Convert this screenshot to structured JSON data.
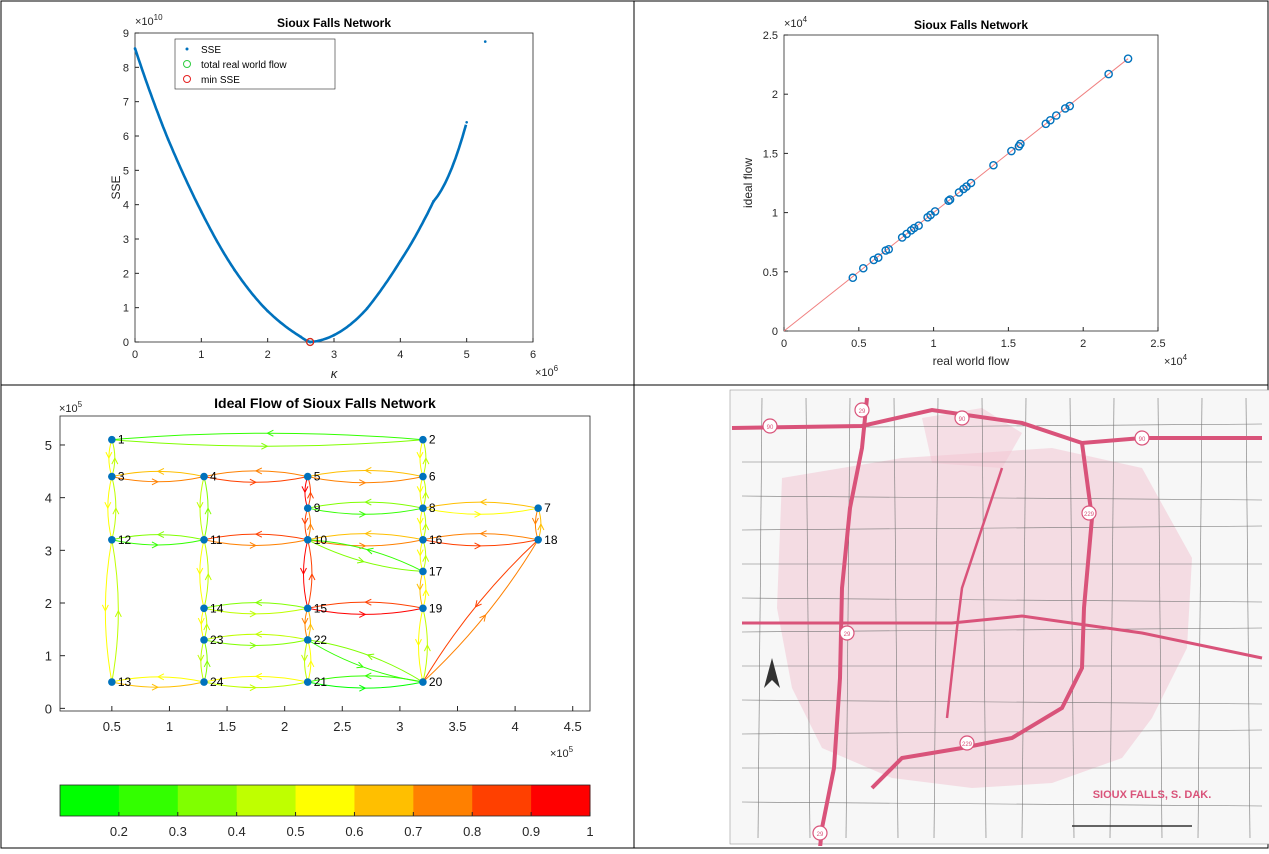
{
  "chart_data": [
    {
      "type": "line",
      "title": "Sioux Falls Network",
      "xlabel": "κ",
      "ylabel": "SSE",
      "x_exponent": "×10^6",
      "x_exponent_base": "×10",
      "x_exponent_power": "6",
      "y_exponent_base": "×10",
      "y_exponent_power": "10",
      "xlim": [
        0,
        6
      ],
      "ylim": [
        0,
        9
      ],
      "xticks": [
        0,
        1,
        2,
        3,
        4,
        5,
        6
      ],
      "yticks": [
        0,
        1,
        2,
        3,
        4,
        5,
        6,
        7,
        8,
        9
      ],
      "series": [
        {
          "name": "SSE",
          "style": "dots",
          "color": "#0072BD",
          "x": [
            0,
            0.5,
            1,
            1.5,
            2,
            2.5,
            2.64,
            3,
            3.5,
            4,
            4.5,
            5,
            5.28
          ],
          "y": [
            8.55,
            5.9,
            3.8,
            2.1,
            0.9,
            0.15,
            0,
            0.2,
            0.98,
            2.36,
            4.1,
            6.4,
            8.75
          ]
        },
        {
          "name": "total real world flow",
          "style": "circle",
          "color": "#2ECC40",
          "x": [
            2.64
          ],
          "y": [
            0
          ]
        },
        {
          "name": "min SSE",
          "style": "circle",
          "color": "#E52020",
          "x": [
            2.64
          ],
          "y": [
            0
          ]
        }
      ],
      "legend": "top-left"
    },
    {
      "type": "scatter",
      "title": "Sioux Falls Network",
      "xlabel": "real world flow",
      "ylabel": "ideal flow",
      "x_exponent_base": "×10",
      "x_exponent_power": "4",
      "y_exponent_base": "×10",
      "y_exponent_power": "4",
      "xlim": [
        0,
        2.5
      ],
      "ylim": [
        0,
        2.5
      ],
      "xticks": [
        0,
        0.5,
        1,
        1.5,
        2,
        2.5
      ],
      "yticks": [
        0,
        0.5,
        1,
        1.5,
        2,
        2.5
      ],
      "points": [
        [
          0.46,
          0.45
        ],
        [
          0.53,
          0.53
        ],
        [
          0.6,
          0.6
        ],
        [
          0.63,
          0.62
        ],
        [
          0.68,
          0.68
        ],
        [
          0.7,
          0.69
        ],
        [
          0.79,
          0.79
        ],
        [
          0.82,
          0.82
        ],
        [
          0.85,
          0.85
        ],
        [
          0.87,
          0.87
        ],
        [
          0.9,
          0.89
        ],
        [
          0.96,
          0.96
        ],
        [
          0.98,
          0.98
        ],
        [
          1.01,
          1.01
        ],
        [
          1.1,
          1.1
        ],
        [
          1.11,
          1.11
        ],
        [
          1.17,
          1.17
        ],
        [
          1.2,
          1.2
        ],
        [
          1.22,
          1.22
        ],
        [
          1.25,
          1.25
        ],
        [
          1.4,
          1.4
        ],
        [
          1.52,
          1.52
        ],
        [
          1.57,
          1.56
        ],
        [
          1.58,
          1.58
        ],
        [
          1.75,
          1.75
        ],
        [
          1.78,
          1.78
        ],
        [
          1.82,
          1.82
        ],
        [
          1.88,
          1.88
        ],
        [
          1.91,
          1.9
        ],
        [
          2.17,
          2.17
        ],
        [
          2.3,
          2.3
        ]
      ],
      "fit_line": {
        "from": [
          0,
          0
        ],
        "to": [
          2.3,
          2.3
        ],
        "color": "#F08080"
      }
    },
    {
      "type": "network",
      "title": "Ideal Flow of Sioux Falls Network",
      "x_exponent_base": "×10",
      "x_exponent_power": "5",
      "y_exponent_base": "×10",
      "y_exponent_power": "5",
      "xlim": [
        0.05,
        4.65
      ],
      "ylim": [
        -0.05,
        5.55
      ],
      "xticks": [
        0.5,
        1,
        1.5,
        2,
        2.5,
        3,
        3.5,
        4,
        4.5
      ],
      "yticks": [
        0,
        1,
        2,
        3,
        4,
        5
      ],
      "nodes": [
        {
          "id": "1",
          "x": 0.5,
          "y": 5.1
        },
        {
          "id": "2",
          "x": 3.2,
          "y": 5.1
        },
        {
          "id": "3",
          "x": 0.5,
          "y": 4.4
        },
        {
          "id": "4",
          "x": 1.3,
          "y": 4.4
        },
        {
          "id": "5",
          "x": 2.2,
          "y": 4.4
        },
        {
          "id": "6",
          "x": 3.2,
          "y": 4.4
        },
        {
          "id": "7",
          "x": 4.2,
          "y": 3.8
        },
        {
          "id": "8",
          "x": 3.2,
          "y": 3.8
        },
        {
          "id": "9",
          "x": 2.2,
          "y": 3.8
        },
        {
          "id": "10",
          "x": 2.2,
          "y": 3.2
        },
        {
          "id": "11",
          "x": 1.3,
          "y": 3.2
        },
        {
          "id": "12",
          "x": 0.5,
          "y": 3.2
        },
        {
          "id": "13",
          "x": 0.5,
          "y": 0.5
        },
        {
          "id": "14",
          "x": 1.3,
          "y": 1.9
        },
        {
          "id": "15",
          "x": 2.2,
          "y": 1.9
        },
        {
          "id": "16",
          "x": 3.2,
          "y": 3.2
        },
        {
          "id": "17",
          "x": 3.2,
          "y": 2.6
        },
        {
          "id": "18",
          "x": 4.2,
          "y": 3.2
        },
        {
          "id": "19",
          "x": 3.2,
          "y": 1.9
        },
        {
          "id": "20",
          "x": 3.2,
          "y": 0.5
        },
        {
          "id": "21",
          "x": 2.2,
          "y": 0.5
        },
        {
          "id": "22",
          "x": 2.2,
          "y": 1.3
        },
        {
          "id": "23",
          "x": 1.3,
          "y": 1.3
        },
        {
          "id": "24",
          "x": 1.3,
          "y": 0.5
        }
      ],
      "links": [
        [
          "1",
          "2",
          0.3
        ],
        [
          "1",
          "3",
          0.5
        ],
        [
          "2",
          "6",
          0.5
        ],
        [
          "3",
          "4",
          0.7
        ],
        [
          "3",
          "12",
          0.5
        ],
        [
          "4",
          "5",
          0.8
        ],
        [
          "4",
          "11",
          0.4
        ],
        [
          "5",
          "6",
          0.7
        ],
        [
          "5",
          "9",
          0.9
        ],
        [
          "6",
          "8",
          0.5
        ],
        [
          "7",
          "8",
          0.65
        ],
        [
          "7",
          "18",
          0.7
        ],
        [
          "8",
          "9",
          0.35
        ],
        [
          "8",
          "16",
          0.55
        ],
        [
          "9",
          "10",
          0.8
        ],
        [
          "10",
          "11",
          0.85
        ],
        [
          "10",
          "16",
          0.75
        ],
        [
          "10",
          "17",
          0.35
        ],
        [
          "10",
          "15",
          0.9
        ],
        [
          "11",
          "12",
          0.35
        ],
        [
          "11",
          "14",
          0.55
        ],
        [
          "12",
          "13",
          0.55
        ],
        [
          "13",
          "24",
          0.65
        ],
        [
          "14",
          "15",
          0.45
        ],
        [
          "14",
          "23",
          0.5
        ],
        [
          "15",
          "19",
          0.9
        ],
        [
          "15",
          "22",
          0.75
        ],
        [
          "16",
          "17",
          0.55
        ],
        [
          "16",
          "18",
          0.8
        ],
        [
          "17",
          "19",
          0.6
        ],
        [
          "18",
          "20",
          0.85
        ],
        [
          "19",
          "20",
          0.55
        ],
        [
          "20",
          "21",
          0.25
        ],
        [
          "20",
          "22",
          0.35
        ],
        [
          "21",
          "22",
          0.55
        ],
        [
          "21",
          "24",
          0.55
        ],
        [
          "22",
          "23",
          0.4
        ],
        [
          "23",
          "24",
          0.45
        ]
      ],
      "colorbar": {
        "ticks": [
          0.2,
          0.3,
          0.4,
          0.5,
          0.6,
          0.7,
          0.8,
          0.9,
          1
        ],
        "range": [
          0.1,
          1
        ],
        "colors": [
          "#00FF00",
          "#33FF00",
          "#80FF00",
          "#BFFF00",
          "#FFFF00",
          "#FFBF00",
          "#FF8000",
          "#FF4000",
          "#FF0000"
        ]
      }
    }
  ],
  "map": {
    "title": "SIOUX FALLS, S. DAK."
  },
  "colors": {
    "line_blue": "#0072BD",
    "axis": "#262626",
    "map_road": "#D9537A",
    "map_urban": "#F3C6D4"
  }
}
